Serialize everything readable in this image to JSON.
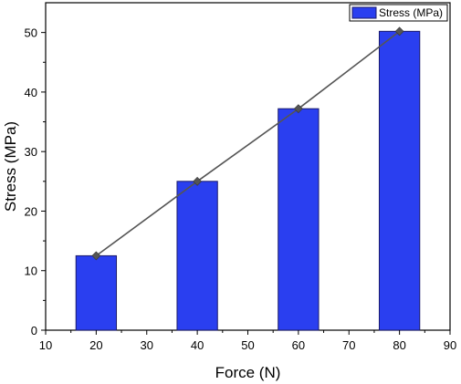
{
  "chart_data": {
    "type": "bar",
    "x": [
      20,
      40,
      60,
      80
    ],
    "series": [
      {
        "name": "Stress (MPa)",
        "values": [
          12.5,
          25.0,
          37.2,
          50.2
        ]
      }
    ],
    "overlay_line": {
      "x": [
        20,
        40,
        60,
        80
      ],
      "y": [
        12.5,
        25.0,
        37.2,
        50.2
      ],
      "marker": "diamond"
    },
    "xlabel": "Force (N)",
    "ylabel": "Stress (MPa)",
    "xlim": [
      10,
      90
    ],
    "ylim": [
      0,
      55
    ],
    "xticks": [
      10,
      20,
      30,
      40,
      50,
      60,
      70,
      80,
      90
    ],
    "yticks": [
      0,
      10,
      20,
      30,
      40,
      50
    ],
    "bar_width": 8,
    "grid": false,
    "legend_position": "top-right",
    "colors": {
      "bar": "#2a3ff0",
      "bar_edge": "#1a1a6a",
      "line": "#555555",
      "marker": "#555555"
    }
  }
}
